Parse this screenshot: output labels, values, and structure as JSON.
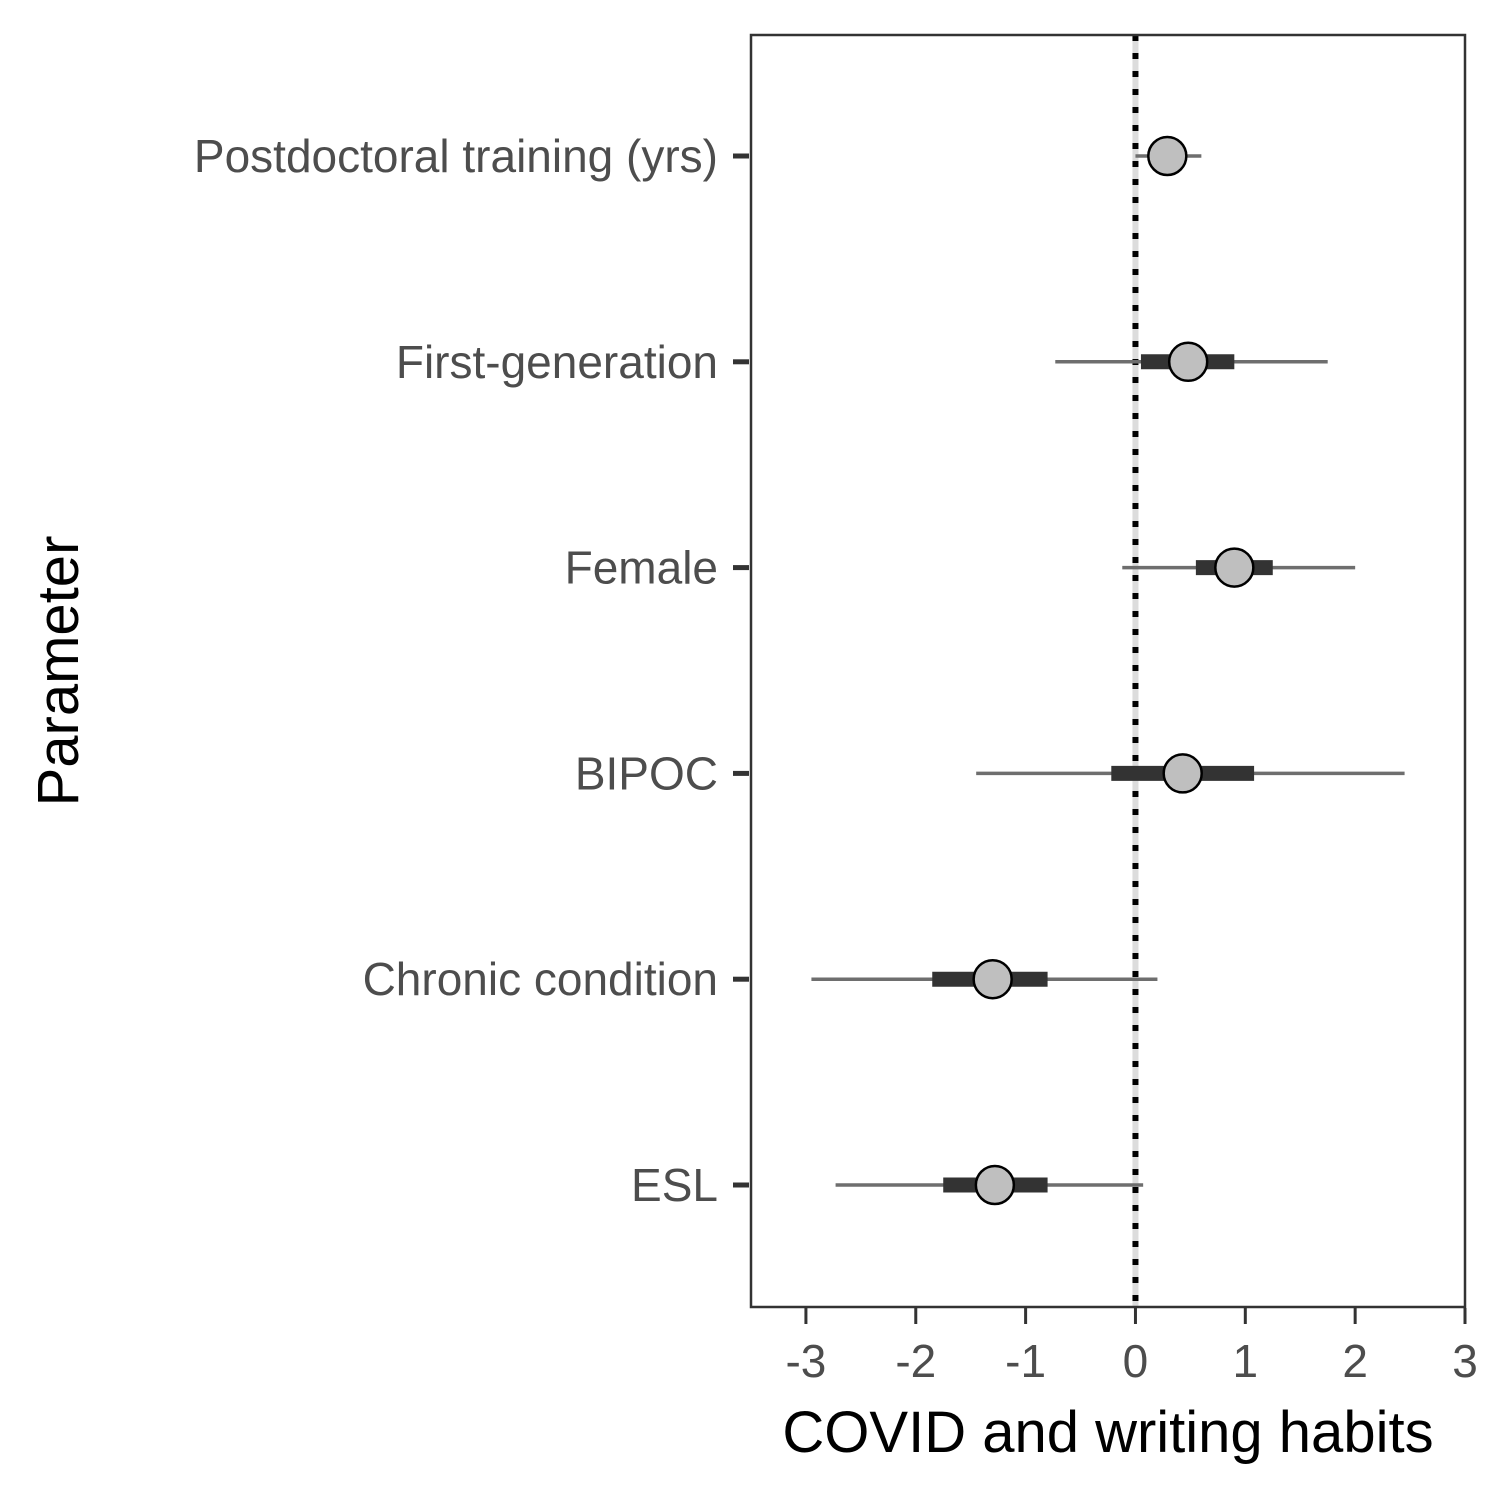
{
  "chart_data": {
    "type": "forest",
    "title": "",
    "xlabel": "COVID and writing habits",
    "ylabel": "Parameter",
    "xlim": [
      -3.5,
      3.0
    ],
    "x_ticks": [
      -3,
      -2,
      -1,
      0,
      1,
      2,
      3
    ],
    "x_tick_labels": [
      "-3",
      "-2",
      "-1",
      "0",
      "1",
      "2",
      "3"
    ],
    "reference_line": 0,
    "grid": false,
    "parameters": [
      {
        "name": "Postdoctoral training (yrs)",
        "estimate": 0.29,
        "inner_interval": [
          0.22,
          0.36
        ],
        "outer_interval": [
          0.0,
          0.6
        ]
      },
      {
        "name": "First-generation",
        "estimate": 0.48,
        "inner_interval": [
          0.05,
          0.9
        ],
        "outer_interval": [
          -0.73,
          1.75
        ]
      },
      {
        "name": "Female",
        "estimate": 0.9,
        "inner_interval": [
          0.55,
          1.25
        ],
        "outer_interval": [
          -0.12,
          2.0
        ]
      },
      {
        "name": "BIPOC",
        "estimate": 0.43,
        "inner_interval": [
          -0.22,
          1.08
        ],
        "outer_interval": [
          -1.45,
          2.45
        ]
      },
      {
        "name": "Chronic condition",
        "estimate": -1.3,
        "inner_interval": [
          -1.85,
          -0.8
        ],
        "outer_interval": [
          -2.95,
          0.2
        ]
      },
      {
        "name": "ESL",
        "estimate": -1.28,
        "inner_interval": [
          -1.75,
          -0.8
        ],
        "outer_interval": [
          -2.73,
          0.07
        ]
      }
    ],
    "colors": {
      "point_fill": "#bfbfbf",
      "point_stroke": "#000000",
      "inner_interval": "#333333",
      "outer_interval": "#6e6e6e",
      "reference_line": "#000000",
      "panel_border": "#333333"
    }
  }
}
